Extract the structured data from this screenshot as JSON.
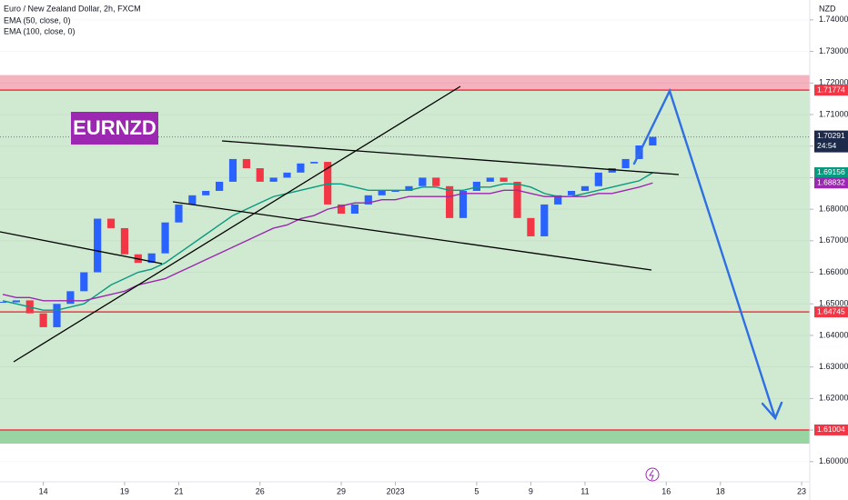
{
  "chart_data": {
    "type": "candlestick",
    "title": "Euro / New Zealand Dollar, 2h, FXCM",
    "currency": "NZD",
    "badge": "EURNZD",
    "countdown": "24:54",
    "up_color": "#2962ff",
    "down_color": "#f23645",
    "x": [
      -1.5,
      -1,
      -0.5,
      0,
      0.5,
      1,
      1.5,
      2,
      2.5,
      3,
      3.5,
      4,
      4.5,
      5,
      5.5,
      6,
      6.5,
      7,
      7.5,
      8,
      8.5,
      9,
      9.5,
      10,
      10.5,
      11,
      11.5,
      12,
      12.5,
      13,
      13.5,
      14,
      14.5,
      15,
      15.5,
      16,
      16.5,
      17,
      17.5,
      18,
      18.5,
      19,
      19.5,
      20,
      20.5,
      21,
      21.5,
      22,
      22.5
    ],
    "series": [
      {
        "color": "#131722",
        "values": [
          1.6505,
          1.6511,
          1.647,
          1.6426,
          1.65,
          1.654,
          1.66,
          1.677,
          1.674,
          1.6657,
          1.663,
          1.666,
          1.6758,
          1.6815,
          1.6844,
          1.6858,
          1.6887,
          1.6959,
          1.693,
          1.6887,
          1.69,
          1.6916,
          1.6945,
          1.695,
          1.6815,
          1.6786,
          1.6815,
          1.6844,
          1.6858,
          1.6858,
          1.6873,
          1.69,
          1.6873,
          1.6772,
          1.6858,
          1.6887,
          1.69,
          1.6887,
          1.6772,
          1.6714,
          1.6815,
          1.6844,
          1.6858,
          1.6873,
          1.6916,
          1.693,
          1.6959,
          1.7002,
          1.70291
        ]
      },
      {
        "name": "EMA (50, close, 0)",
        "color": "#089981",
        "values": [
          1.651,
          1.65,
          1.649,
          1.648,
          1.648,
          1.649,
          1.65,
          1.653,
          1.656,
          1.658,
          1.66,
          1.661,
          1.663,
          1.666,
          1.669,
          1.672,
          1.675,
          1.678,
          1.68,
          1.682,
          1.684,
          1.685,
          1.686,
          1.687,
          1.688,
          1.688,
          1.687,
          1.686,
          1.686,
          1.686,
          1.686,
          1.687,
          1.687,
          1.686,
          1.686,
          1.687,
          1.687,
          1.688,
          1.688,
          1.687,
          1.685,
          1.684,
          1.684,
          1.685,
          1.686,
          1.687,
          1.688,
          1.689,
          1.69156
        ]
      },
      {
        "name": "EMA (100, close, 0)",
        "color": "#9c27b0",
        "values": [
          1.653,
          1.652,
          1.652,
          1.651,
          1.651,
          1.651,
          1.651,
          1.652,
          1.653,
          1.654,
          1.656,
          1.657,
          1.658,
          1.66,
          1.662,
          1.664,
          1.666,
          1.668,
          1.67,
          1.672,
          1.674,
          1.675,
          1.677,
          1.678,
          1.68,
          1.681,
          1.682,
          1.682,
          1.683,
          1.683,
          1.684,
          1.684,
          1.684,
          1.684,
          1.685,
          1.685,
          1.685,
          1.686,
          1.686,
          1.685,
          1.684,
          1.684,
          1.684,
          1.684,
          1.685,
          1.685,
          1.686,
          1.687,
          1.68832
        ]
      }
    ],
    "levels": [
      1.71774,
      1.64745,
      1.61004
    ],
    "level_color": "#f23645",
    "zones": [
      {
        "from": 1.71774,
        "to": 1.7225,
        "color": "#f3a5b4"
      },
      {
        "from": 1.6057,
        "to": 1.71774,
        "color": "#c8e6c9"
      },
      {
        "from": 1.6057,
        "to": 1.61004,
        "color": "#8fd19a"
      }
    ],
    "xlim": [
      -1.6,
      28.3
    ],
    "ylim": [
      1.5936,
      1.7463
    ],
    "yticks": [
      {
        "value": 1.74,
        "label": "1.74000"
      },
      {
        "value": 1.73,
        "label": "1.73000"
      },
      {
        "value": 1.72,
        "label": "1.72000"
      },
      {
        "value": 1.71,
        "label": "1.71000"
      },
      {
        "value": 1.7,
        "label": "1.70000"
      },
      {
        "value": 1.69,
        "label": "1.69000"
      },
      {
        "value": 1.68,
        "label": "1.68000"
      },
      {
        "value": 1.67,
        "label": "1.67000"
      },
      {
        "value": 1.66,
        "label": "1.66000"
      },
      {
        "value": 1.65,
        "label": "1.65000"
      },
      {
        "value": 1.64,
        "label": "1.64000"
      },
      {
        "value": 1.63,
        "label": "1.63000"
      },
      {
        "value": 1.62,
        "label": "1.62000"
      },
      {
        "value": 1.61,
        "label": "1.61000"
      },
      {
        "value": 1.6,
        "label": "1.60000"
      }
    ],
    "xticks": [
      {
        "value": 0,
        "label": "14"
      },
      {
        "value": 3,
        "label": "19"
      },
      {
        "value": 5,
        "label": "21"
      },
      {
        "value": 8,
        "label": "26"
      },
      {
        "value": 11,
        "label": "29"
      },
      {
        "value": 13,
        "label": "2023"
      },
      {
        "value": 16,
        "label": "5"
      },
      {
        "value": 18,
        "label": "9"
      },
      {
        "value": 20,
        "label": "11"
      },
      {
        "value": 23,
        "label": "16"
      },
      {
        "value": 25,
        "label": "18"
      },
      {
        "value": 28,
        "label": "23"
      }
    ]
  }
}
